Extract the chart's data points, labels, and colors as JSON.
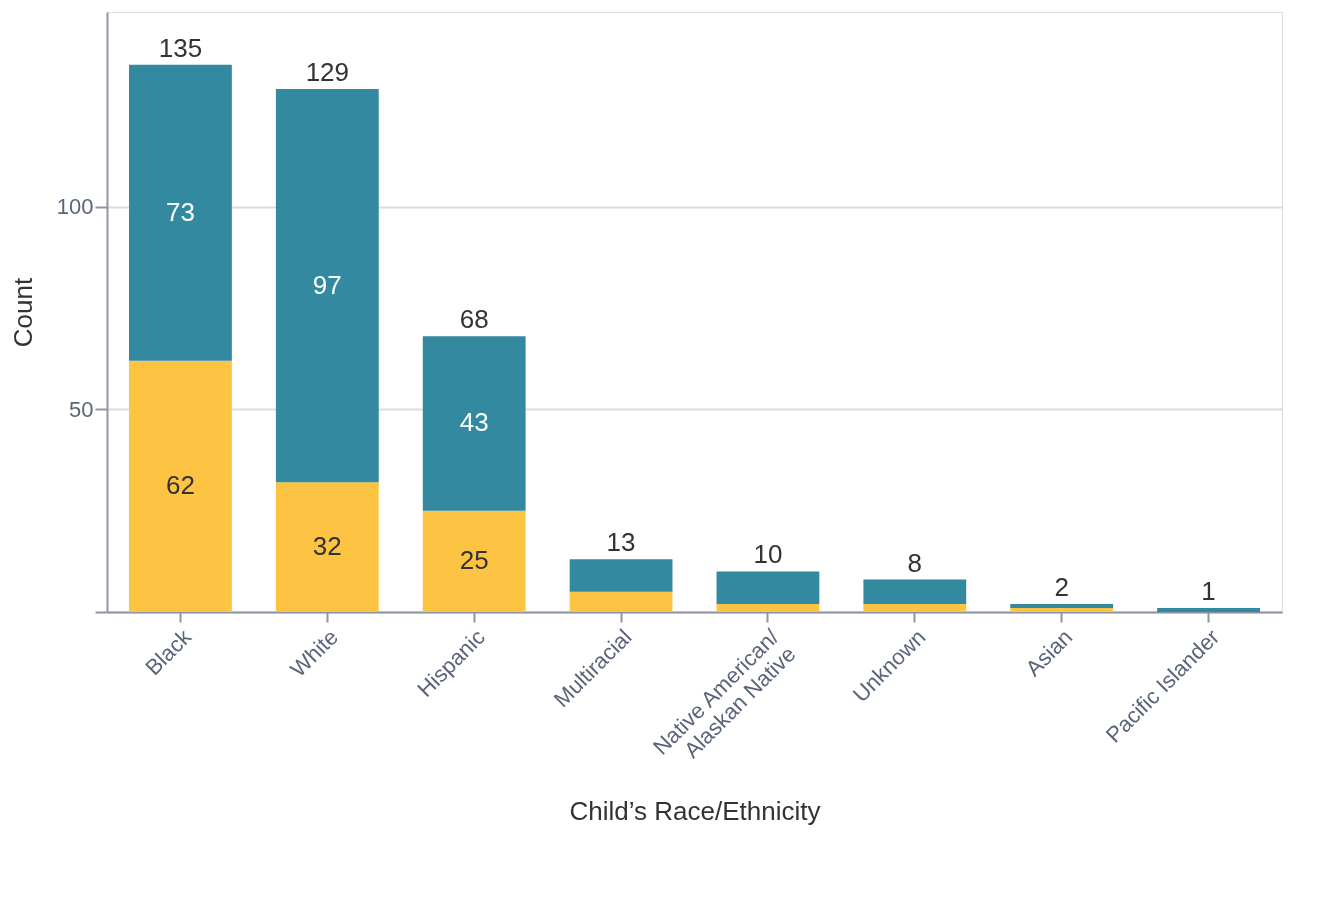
{
  "chart_data": {
    "type": "bar",
    "stacked": true,
    "xlabel": "Child’s Race/Ethnicity",
    "ylabel": "Count",
    "categories": [
      "Black",
      "White",
      "Hispanic",
      "Multiracial",
      "Native American/\nAlaskan Native",
      "Unknown",
      "Asian",
      "Pacific Islander"
    ],
    "series": [
      {
        "color": "#fcc442",
        "values": [
          62,
          32,
          25,
          5,
          2,
          2,
          1,
          0
        ],
        "value_labels": [
          "62",
          "32",
          "25",
          null,
          null,
          null,
          null,
          null
        ]
      },
      {
        "color": "#3289a0",
        "values": [
          73,
          97,
          43,
          8,
          8,
          6,
          1,
          1
        ],
        "value_labels": [
          "73",
          "97",
          "43",
          null,
          null,
          null,
          null,
          null
        ]
      }
    ],
    "totals": [
      "135",
      "129",
      "68",
      "13",
      "10",
      "8",
      "2",
      "1"
    ],
    "ylim": [
      0,
      148
    ],
    "yticks": [
      {
        "value": 0,
        "label": null
      },
      50,
      100
    ],
    "grid": "y"
  }
}
